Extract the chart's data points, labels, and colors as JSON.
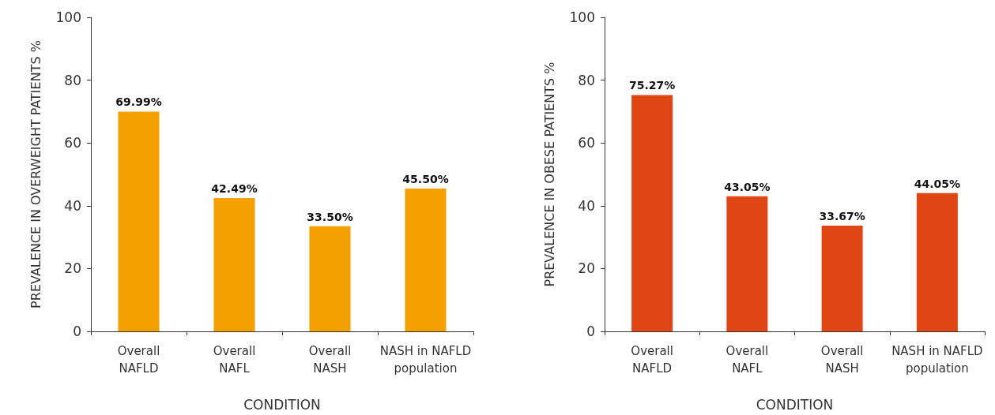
{
  "chart_data": [
    {
      "type": "bar",
      "xlabel": "CONDITION",
      "ylabel": "PREVALENCE IN OVERWEIGHT PATIENTS %",
      "categories": [
        "Overall\nNAFLD",
        "Overall\nNAFL",
        "Overall\nNASH",
        "NASH in NAFLD\npopulation"
      ],
      "values": [
        69.99,
        42.49,
        33.5,
        45.5
      ],
      "value_labels": [
        "69.99%",
        "42.49%",
        "33.50%",
        "45.50%"
      ],
      "color": "#f4a000",
      "ylim": [
        0,
        100
      ],
      "yticks": [
        0,
        20,
        40,
        60,
        80,
        100
      ]
    },
    {
      "type": "bar",
      "xlabel": "CONDITION",
      "ylabel": "PREVALENCE IN OBESE PATIENTS %",
      "categories": [
        "Overall\nNAFLD",
        "Overall\nNAFL",
        "Overall\nNASH",
        "NASH in NAFLD\npopulation"
      ],
      "values": [
        75.27,
        43.05,
        33.67,
        44.05
      ],
      "value_labels": [
        "75.27%",
        "43.05%",
        "33.67%",
        "44.05%"
      ],
      "color": "#e04514",
      "ylim": [
        0,
        100
      ],
      "yticks": [
        0,
        20,
        40,
        60,
        80,
        100
      ]
    }
  ]
}
